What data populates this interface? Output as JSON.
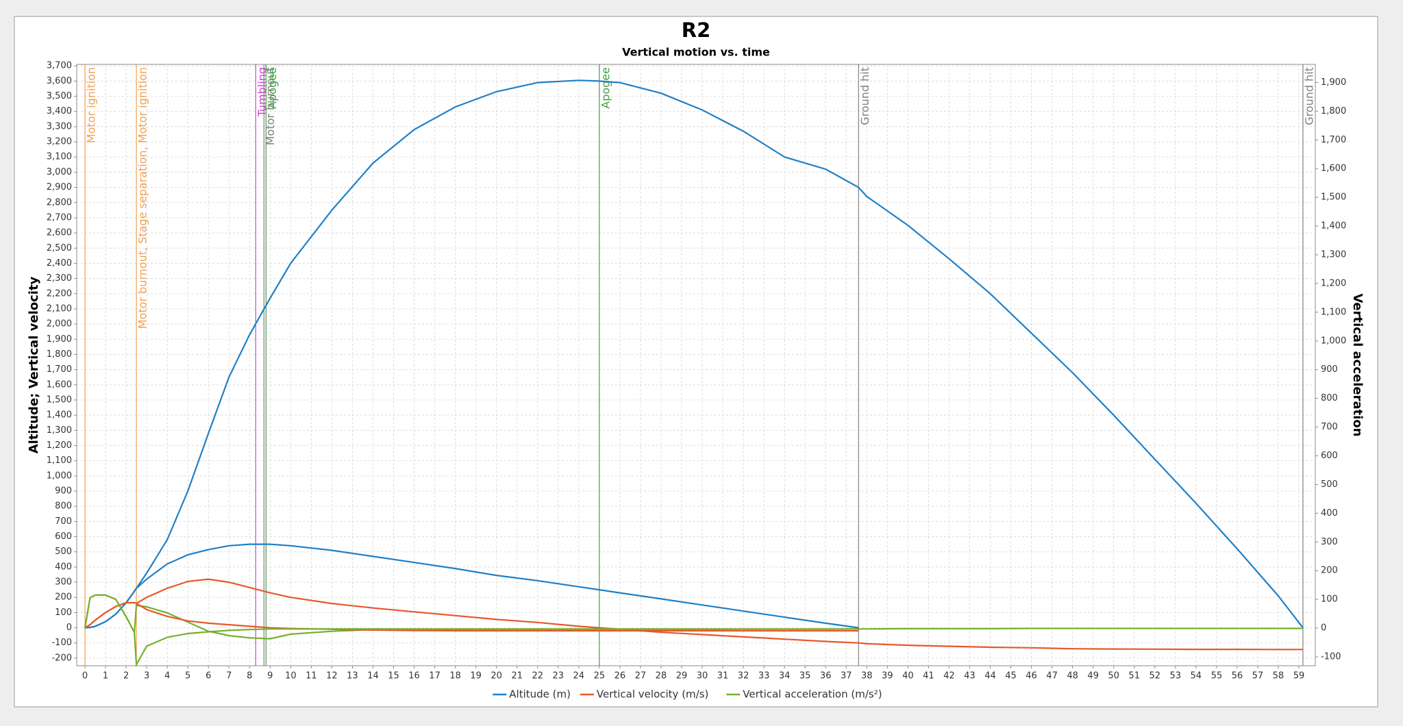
{
  "chart_data": {
    "type": "line",
    "title": "R2",
    "subtitle": "Vertical motion vs. time",
    "y_label": "Altitude; Vertical velocity",
    "y2_label": "Vertical acceleration",
    "grid": true,
    "legend": "bottom",
    "x": [
      0,
      0.25,
      0.5,
      1,
      1.5,
      2,
      2.4,
      2.5,
      3,
      4,
      5,
      6,
      7,
      8,
      9,
      10,
      12,
      14,
      16,
      18,
      20,
      22,
      24,
      25,
      26,
      28,
      30,
      32,
      34,
      36,
      37.6,
      38,
      40,
      42,
      44,
      46,
      48,
      50,
      52,
      54,
      56,
      58,
      59.2
    ],
    "xlim": [
      -0.4,
      59.8
    ],
    "xticks": [
      0,
      1,
      2,
      3,
      4,
      5,
      6,
      7,
      8,
      9,
      10,
      11,
      12,
      13,
      14,
      15,
      16,
      17,
      18,
      19,
      20,
      21,
      22,
      23,
      24,
      25,
      26,
      27,
      28,
      29,
      30,
      31,
      32,
      33,
      34,
      35,
      36,
      37,
      38,
      39,
      40,
      41,
      42,
      43,
      44,
      45,
      46,
      47,
      48,
      49,
      50,
      51,
      52,
      53,
      54,
      55,
      56,
      57,
      58,
      59
    ],
    "ylim": [
      -250,
      3710
    ],
    "yticks": [
      -200,
      -100,
      0,
      100,
      200,
      300,
      400,
      500,
      600,
      700,
      800,
      900,
      {
        "value": 1000,
        "label": "1,000"
      },
      {
        "value": 1100,
        "label": "1,100"
      },
      {
        "value": 1200,
        "label": "1,200"
      },
      {
        "value": 1300,
        "label": "1,300"
      },
      {
        "value": 1400,
        "label": "1,400"
      },
      {
        "value": 1500,
        "label": "1,500"
      },
      {
        "value": 1600,
        "label": "1,600"
      },
      {
        "value": 1700,
        "label": "1,700"
      },
      {
        "value": 1800,
        "label": "1,800"
      },
      {
        "value": 1900,
        "label": "1,900"
      },
      {
        "value": 2000,
        "label": "2,000"
      },
      {
        "value": 2100,
        "label": "2,100"
      },
      {
        "value": 2200,
        "label": "2,200"
      },
      {
        "value": 2300,
        "label": "2,300"
      },
      {
        "value": 2400,
        "label": "2,400"
      },
      {
        "value": 2500,
        "label": "2,500"
      },
      {
        "value": 2600,
        "label": "2,600"
      },
      {
        "value": 2700,
        "label": "2,700"
      },
      {
        "value": 2800,
        "label": "2,800"
      },
      {
        "value": 2900,
        "label": "2,900"
      },
      {
        "value": 3000,
        "label": "3,000"
      },
      {
        "value": 3100,
        "label": "3,100"
      },
      {
        "value": 3200,
        "label": "3,200"
      },
      {
        "value": 3300,
        "label": "3,300"
      },
      {
        "value": 3400,
        "label": "3,400"
      },
      {
        "value": 3500,
        "label": "3,500"
      },
      {
        "value": 3600,
        "label": "3,600"
      },
      {
        "value": 3700,
        "label": "3,700"
      }
    ],
    "y2lim": [
      -131,
      1963
    ],
    "y2ticks": [
      -100,
      0,
      100,
      200,
      300,
      400,
      500,
      600,
      700,
      800,
      900,
      {
        "value": 1000,
        "label": "1,000"
      },
      {
        "value": 1100,
        "label": "1,100"
      },
      {
        "value": 1200,
        "label": "1,200"
      },
      {
        "value": 1300,
        "label": "1,300"
      },
      {
        "value": 1400,
        "label": "1,400"
      },
      {
        "value": 1500,
        "label": "1,500"
      },
      {
        "value": 1600,
        "label": "1,600"
      },
      {
        "value": 1700,
        "label": "1,700"
      },
      {
        "value": 1800,
        "label": "1,800"
      },
      {
        "value": 1900,
        "label": "1,900"
      }
    ],
    "series": [
      {
        "name": "Altitude (m)",
        "color": "#1f7fc8",
        "values": [
          0,
          2,
          10,
          40,
          90,
          165,
          240,
          260,
          360,
          580,
          900,
          1280,
          1650,
          1930,
          2170,
          2400,
          2750,
          3060,
          3280,
          3430,
          3530,
          3590,
          3605,
          3600,
          3590,
          3520,
          3410,
          3270,
          3100,
          3020,
          2900,
          2840,
          2650,
          2430,
          2200,
          1940,
          1680,
          1400,
          1110,
          820,
          520,
          210,
          0
        ]
      },
      {
        "name": "Vertical velocity (m/s)",
        "color": "#e8572a",
        "values": [
          0,
          20,
          50,
          100,
          140,
          165,
          165,
          160,
          200,
          260,
          305,
          320,
          300,
          265,
          230,
          200,
          160,
          130,
          105,
          80,
          55,
          35,
          10,
          0,
          -10,
          -30,
          -45,
          -60,
          -75,
          -90,
          -100,
          -105,
          -115,
          -122,
          -128,
          -132,
          -138,
          -140,
          -141,
          -142,
          -142,
          -143,
          -143
        ]
      },
      {
        "name": "Vertical acceleration (m/s²)",
        "color": "#77b02c",
        "axis": "y2",
        "values": [
          0,
          106,
          115,
          115,
          100,
          40,
          -15,
          79,
          74,
          53,
          21,
          -11,
          -26,
          -34,
          -37,
          -21,
          -11,
          -5,
          -5,
          -5,
          -5,
          -5,
          -5,
          -5,
          -5,
          -5,
          -5,
          -4,
          -4,
          -4,
          -3,
          -3,
          -2,
          -2,
          -2,
          -1,
          -1,
          -1,
          -1,
          -1,
          -1,
          -1,
          -1
        ]
      },
      {
        "color": "#1f7fc8",
        "values": [
          0,
          2,
          10,
          40,
          90,
          165,
          240,
          260,
          320,
          420,
          480,
          515,
          540,
          550,
          550,
          540,
          510,
          470,
          430,
          390,
          345,
          310,
          270,
          250,
          230,
          190,
          150,
          110,
          70,
          30,
          0,
          null,
          null,
          null,
          null,
          null,
          null,
          null,
          null,
          null,
          null,
          null,
          null
        ]
      },
      {
        "color": "#e8572a",
        "values": [
          0,
          20,
          50,
          100,
          140,
          165,
          165,
          160,
          120,
          75,
          45,
          30,
          20,
          10,
          0,
          -5,
          -10,
          -15,
          -18,
          -20,
          -20,
          -20,
          -20,
          -20,
          -20,
          -20,
          -20,
          -20,
          -20,
          -20,
          -20,
          null,
          null,
          null,
          null,
          null,
          null,
          null,
          null,
          null,
          null,
          null,
          null
        ]
      },
      {
        "color": "#77b02c",
        "axis": "y2",
        "values": [
          0,
          106,
          115,
          115,
          100,
          40,
          -15,
          -127,
          -63,
          -32,
          -19,
          -13,
          -8,
          -5,
          -3,
          -3,
          -3,
          -3,
          -3,
          -3,
          -3,
          -3,
          -3,
          -3,
          -3,
          -3,
          -3,
          -3,
          -3,
          -3,
          -3,
          null,
          null,
          null,
          null,
          null,
          null,
          null,
          null,
          null,
          null,
          null,
          null
        ]
      }
    ],
    "events": [
      {
        "time": 0,
        "label": "Motor ignition",
        "color": "#f0a050"
      },
      {
        "time": 2.5,
        "label": "Motor burnout, Stage separation, Motor ignition",
        "color": "#f0a050"
      },
      {
        "time": 8.3,
        "label": "Tumbling",
        "color": "#d040d0"
      },
      {
        "time": 8.7,
        "label": "Motor burnout",
        "color": "#808080"
      },
      {
        "time": 8.8,
        "label": "Apogee",
        "color": "#40a040"
      },
      {
        "time": 25,
        "label": "Apogee",
        "color": "#40a040"
      },
      {
        "time": 37.6,
        "label": "Ground hit",
        "color": "#808080"
      },
      {
        "time": 59.2,
        "label": "Ground hit",
        "color": "#808080"
      }
    ]
  }
}
